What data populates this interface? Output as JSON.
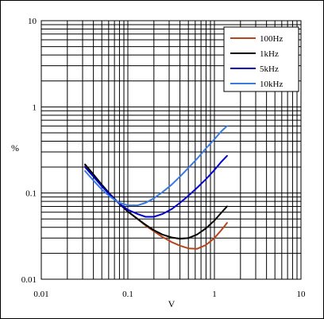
{
  "chart_data": {
    "type": "line",
    "title": "",
    "xlabel": "V",
    "ylabel": "%",
    "x_scale": "log",
    "y_scale": "log",
    "xlim": [
      0.01,
      10
    ],
    "ylim": [
      0.01,
      10
    ],
    "x_ticks": [
      {
        "value": 0.01,
        "label": "0.01"
      },
      {
        "value": 0.1,
        "label": "0.1"
      },
      {
        "value": 1,
        "label": "1"
      },
      {
        "value": 10,
        "label": "10"
      }
    ],
    "y_ticks": [
      {
        "value": 0.01,
        "label": "0.01"
      },
      {
        "value": 0.1,
        "label": "0.1"
      },
      {
        "value": 1,
        "label": "1"
      },
      {
        "value": 10,
        "label": "10"
      }
    ],
    "grid": true,
    "legend_position": "top-right",
    "series": [
      {
        "name": "100Hz",
        "color": "#b5451b",
        "points": [
          [
            0.032,
            0.205
          ],
          [
            0.04,
            0.16
          ],
          [
            0.05,
            0.12
          ],
          [
            0.063,
            0.095
          ],
          [
            0.08,
            0.075
          ],
          [
            0.1,
            0.061
          ],
          [
            0.13,
            0.05
          ],
          [
            0.16,
            0.042
          ],
          [
            0.2,
            0.036
          ],
          [
            0.25,
            0.031
          ],
          [
            0.32,
            0.027
          ],
          [
            0.4,
            0.0245
          ],
          [
            0.5,
            0.0228
          ],
          [
            0.63,
            0.0225
          ],
          [
            0.8,
            0.025
          ],
          [
            1.0,
            0.03
          ],
          [
            1.2,
            0.037
          ],
          [
            1.4,
            0.045
          ]
        ]
      },
      {
        "name": "1kHz",
        "color": "#000000",
        "points": [
          [
            0.032,
            0.215
          ],
          [
            0.04,
            0.165
          ],
          [
            0.05,
            0.125
          ],
          [
            0.063,
            0.096
          ],
          [
            0.08,
            0.075
          ],
          [
            0.1,
            0.061
          ],
          [
            0.13,
            0.05
          ],
          [
            0.16,
            0.043
          ],
          [
            0.2,
            0.037
          ],
          [
            0.25,
            0.033
          ],
          [
            0.32,
            0.0305
          ],
          [
            0.4,
            0.0295
          ],
          [
            0.5,
            0.03
          ],
          [
            0.63,
            0.033
          ],
          [
            0.8,
            0.039
          ],
          [
            1.0,
            0.048
          ],
          [
            1.2,
            0.059
          ],
          [
            1.4,
            0.07
          ]
        ]
      },
      {
        "name": "5kHz",
        "color": "#0000cc",
        "points": [
          [
            0.032,
            0.2
          ],
          [
            0.04,
            0.155
          ],
          [
            0.05,
            0.12
          ],
          [
            0.063,
            0.094
          ],
          [
            0.08,
            0.075
          ],
          [
            0.1,
            0.064
          ],
          [
            0.13,
            0.057
          ],
          [
            0.16,
            0.053
          ],
          [
            0.2,
            0.053
          ],
          [
            0.25,
            0.057
          ],
          [
            0.32,
            0.065
          ],
          [
            0.4,
            0.077
          ],
          [
            0.5,
            0.093
          ],
          [
            0.63,
            0.115
          ],
          [
            0.8,
            0.145
          ],
          [
            1.0,
            0.185
          ],
          [
            1.2,
            0.23
          ],
          [
            1.4,
            0.27
          ]
        ]
      },
      {
        "name": "10kHz",
        "color": "#3a7be0",
        "points": [
          [
            0.032,
            0.18
          ],
          [
            0.04,
            0.14
          ],
          [
            0.05,
            0.11
          ],
          [
            0.063,
            0.09
          ],
          [
            0.08,
            0.077
          ],
          [
            0.1,
            0.072
          ],
          [
            0.13,
            0.072
          ],
          [
            0.16,
            0.077
          ],
          [
            0.2,
            0.087
          ],
          [
            0.25,
            0.102
          ],
          [
            0.32,
            0.125
          ],
          [
            0.4,
            0.155
          ],
          [
            0.5,
            0.195
          ],
          [
            0.63,
            0.25
          ],
          [
            0.8,
            0.33
          ],
          [
            1.0,
            0.42
          ],
          [
            1.2,
            0.52
          ],
          [
            1.4,
            0.6
          ]
        ]
      }
    ]
  }
}
